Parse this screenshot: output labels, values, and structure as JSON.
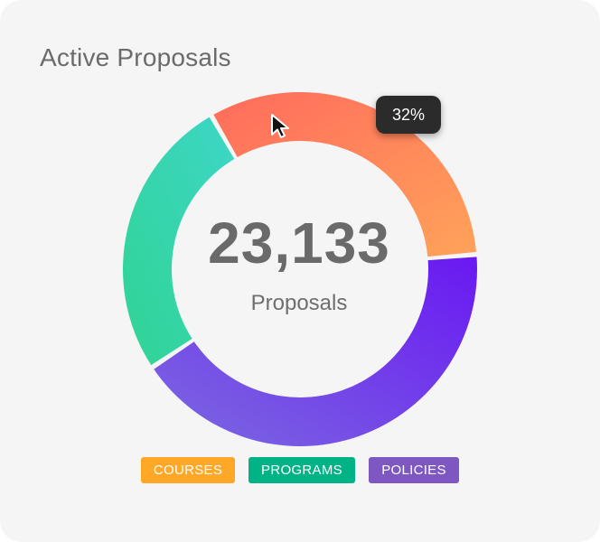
{
  "card": {
    "title": "Active Proposals"
  },
  "center": {
    "value": "23,133",
    "label": "Proposals"
  },
  "tooltip": {
    "text": "32%"
  },
  "chart_data": {
    "type": "donut",
    "segments": [
      {
        "key": "courses",
        "share": 0.32,
        "color_start": "#ff6b5c",
        "color_end": "#ffa35a"
      },
      {
        "key": "policies",
        "share": 0.42,
        "color_start": "#7b6ae0",
        "color_end": "#6a18f2"
      },
      {
        "key": "programs",
        "share": 0.26,
        "color_start": "#30d494",
        "color_end": "#3dd6c6"
      }
    ]
  },
  "legend": {
    "items": [
      {
        "label": "COURSES",
        "color": "#ffa726"
      },
      {
        "label": "PROGRAMS",
        "color": "#00b386"
      },
      {
        "label": "POLICIES",
        "color": "#7e57c2"
      }
    ]
  },
  "cursor": {
    "icon": "mouse-pointer-icon"
  }
}
